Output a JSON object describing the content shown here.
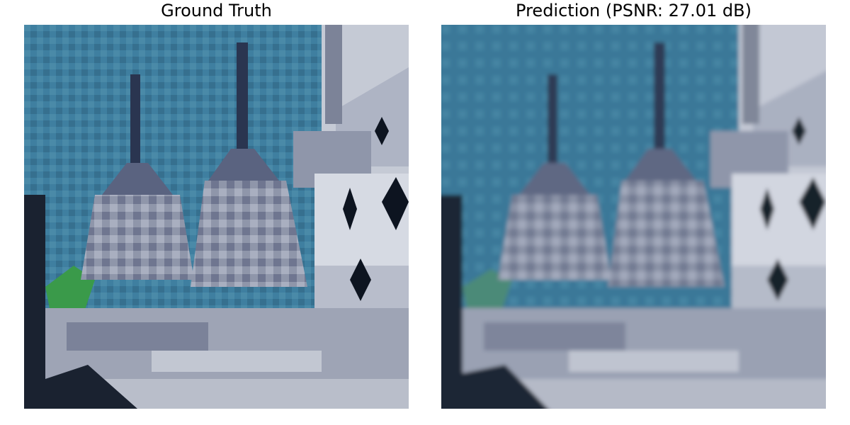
{
  "panels": {
    "left": {
      "title": "Ground Truth"
    },
    "right": {
      "title": "Prediction (PSNR: 27.01 dB)"
    }
  },
  "colors": {
    "sky": "#3f7fa0",
    "sky_dark": "#2c5f80",
    "stone": "#8f96aa",
    "stone_light": "#c5cad5",
    "stone_dark": "#4b5268",
    "shadow": "#0d1420",
    "foliage": "#3a9a4a"
  },
  "scene_icons": [
    "stupa-icon",
    "spire-icon",
    "lattice-window-icon"
  ]
}
